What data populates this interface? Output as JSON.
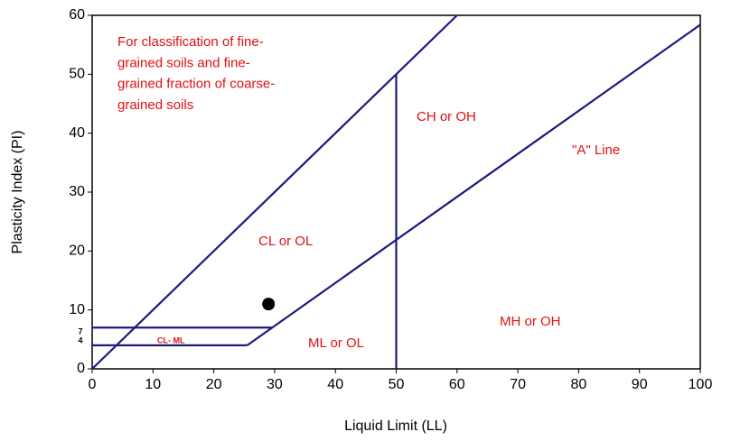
{
  "chart_data": {
    "type": "scatter",
    "xlabel": "Liquid Limit (LL)",
    "ylabel": "Plasticity Index (PI)",
    "xlim": [
      0,
      100
    ],
    "xticks": [
      0,
      10,
      20,
      30,
      40,
      50,
      60,
      70,
      80,
      90,
      100
    ],
    "ylim": [
      0,
      60
    ],
    "yticks": [
      0,
      10,
      20,
      30,
      40,
      50,
      60
    ],
    "small_yticks": [
      7,
      4
    ],
    "x": [
      29
    ],
    "values": [
      11
    ],
    "color": "#000000",
    "line_color": "#1a1a80",
    "lines": [
      {
        "x": [
          0,
          60
        ],
        "y": [
          0,
          60
        ]
      },
      {
        "x": [
          25.5,
          100
        ],
        "y": [
          4,
          58.4
        ]
      },
      {
        "x": [
          50,
          50
        ],
        "y": [
          0,
          50
        ]
      },
      {
        "x": [
          0,
          29.6
        ],
        "y": [
          7,
          7
        ]
      },
      {
        "x": [
          0,
          25.5
        ],
        "y": [
          4,
          4
        ]
      }
    ],
    "note_color": "#e01010",
    "annotations": [
      [
        "For classification of fine-",
        "grained soils and fine-",
        "grained fraction of coarse-",
        "grained soils"
      ],
      [
        "CH or OH"
      ],
      [
        "\"A\" Line"
      ],
      [
        "CL or OL"
      ],
      [
        "CL- ML"
      ],
      [
        "ML or OL"
      ],
      [
        "MH or OH"
      ]
    ]
  }
}
